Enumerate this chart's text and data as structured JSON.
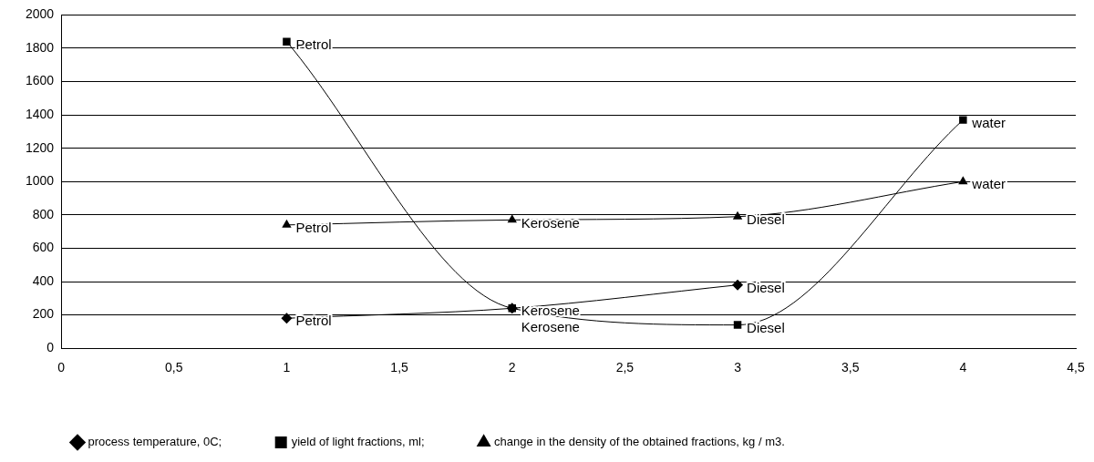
{
  "chart_data": {
    "type": "line",
    "x": [
      1,
      2,
      3,
      4
    ],
    "xlim": [
      0,
      4.5
    ],
    "xticks": [
      0,
      {
        "value": 0.5,
        "label": "0,5"
      },
      1,
      {
        "value": 1.5,
        "label": "1,5"
      },
      2,
      {
        "value": 2.5,
        "label": "2,5"
      },
      3,
      {
        "value": 3.5,
        "label": "3,5"
      },
      4,
      {
        "value": 4.5,
        "label": "4,5"
      }
    ],
    "ylim": [
      0,
      2000
    ],
    "yticks": [
      0,
      200,
      400,
      600,
      800,
      1000,
      1200,
      1400,
      1600,
      1800,
      2000
    ],
    "grid": "y",
    "legend": "bottom",
    "line_style": "solid",
    "series": [
      {
        "name": "process temperature, 0C;",
        "color": "#000000",
        "marker": "diamond",
        "x": [
          1,
          2,
          3
        ],
        "values": [
          180,
          240,
          380
        ],
        "value_labels": [
          "Petrol",
          "Kerosene",
          "Diesel"
        ]
      },
      {
        "name": "yield of light fractions, ml;",
        "color": "#000000",
        "marker": "square",
        "values": [
          1840,
          240,
          140,
          1370
        ],
        "value_labels": [
          "Petrol",
          "Kerosene",
          "Diesel",
          "water"
        ]
      },
      {
        "name": "change in the density of the obtained fractions, kg / m3.",
        "color": "#000000",
        "marker": "triangle",
        "values": [
          740,
          770,
          790,
          1000
        ],
        "value_labels": [
          "Petrol",
          "Kerosene",
          "Diesel",
          "water"
        ]
      }
    ]
  }
}
